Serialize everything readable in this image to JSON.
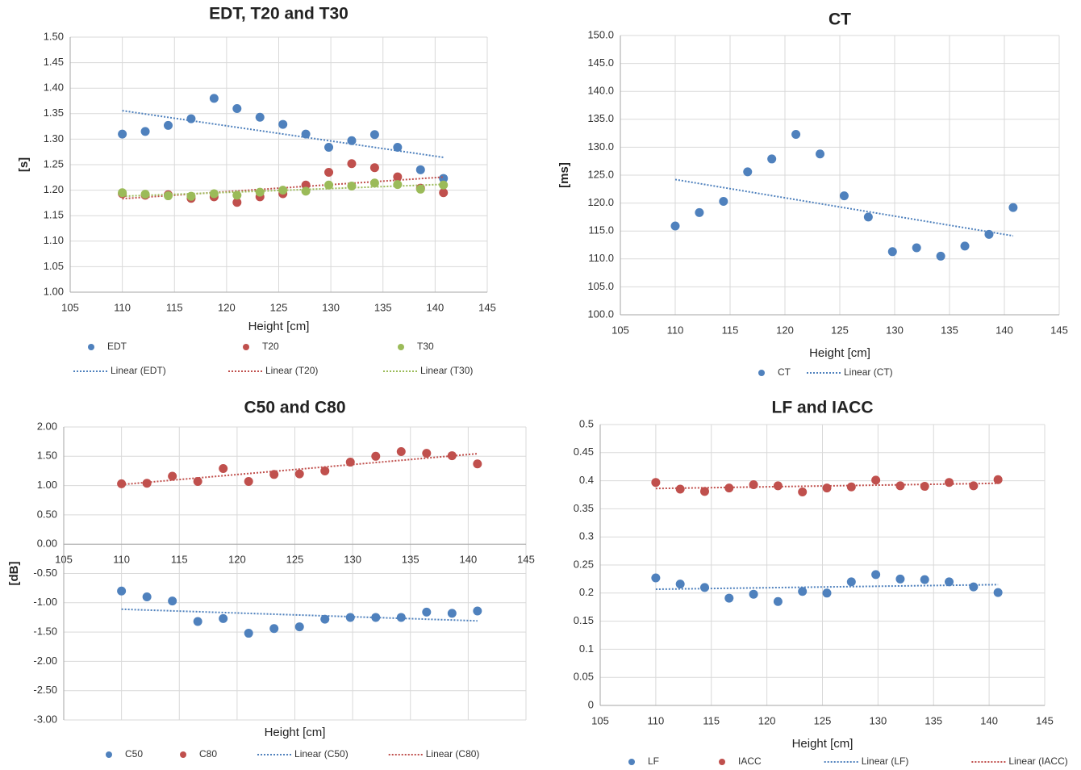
{
  "chart_data": [
    {
      "type": "scatter",
      "title": "EDT, T20  and T30",
      "xlabel": "Height [cm]",
      "ylabel": "[s]",
      "x": [
        110,
        112.2,
        114.4,
        116.6,
        118.8,
        121,
        123.2,
        125.4,
        127.6,
        129.8,
        132,
        134.2,
        136.4,
        138.6,
        140.8
      ],
      "series": [
        {
          "name": "EDT",
          "color": "#4f81bd",
          "trendline": "Linear (EDT)",
          "values": [
            1.31,
            1.315,
            1.327,
            1.34,
            1.38,
            1.36,
            1.343,
            1.329,
            1.31,
            1.284,
            1.297,
            1.309,
            1.284,
            1.24,
            1.223
          ]
        },
        {
          "name": "T20",
          "color": "#c0504d",
          "trendline": "Linear (T20)",
          "values": [
            1.193,
            1.19,
            1.191,
            1.184,
            1.187,
            1.176,
            1.187,
            1.193,
            1.21,
            1.235,
            1.252,
            1.244,
            1.226,
            1.204,
            1.195
          ]
        },
        {
          "name": "T30",
          "color": "#9bbb59",
          "trendline": "Linear (T30)",
          "values": [
            1.195,
            1.192,
            1.189,
            1.188,
            1.193,
            1.19,
            1.196,
            1.2,
            1.198,
            1.21,
            1.208,
            1.214,
            1.211,
            1.202,
            1.21
          ]
        }
      ],
      "xlim": [
        105,
        145
      ],
      "xticks": [
        105,
        110,
        115,
        120,
        125,
        130,
        135,
        140,
        145
      ],
      "ylim": [
        1.0,
        1.5
      ],
      "yticks": [
        {
          "value": 1.0,
          "label": "1.00"
        },
        {
          "value": 1.05,
          "label": "1.05"
        },
        {
          "value": 1.1,
          "label": "1.10"
        },
        {
          "value": 1.15,
          "label": "1.15"
        },
        {
          "value": 1.2,
          "label": "1.20"
        },
        {
          "value": 1.25,
          "label": "1.25"
        },
        {
          "value": 1.3,
          "label": "1.30"
        },
        {
          "value": 1.35,
          "label": "1.35"
        },
        {
          "value": 1.4,
          "label": "1.40"
        },
        {
          "value": 1.45,
          "label": "1.45"
        },
        {
          "value": 1.5,
          "label": "1.50"
        }
      ],
      "grid": true,
      "legend": "bottom"
    },
    {
      "type": "scatter",
      "title": "CT",
      "xlabel": "Height [cm]",
      "ylabel": "[ms]",
      "x": [
        110,
        112.2,
        114.4,
        116.6,
        118.8,
        121,
        123.2,
        125.4,
        127.6,
        129.8,
        132,
        134.2,
        136.4,
        138.6,
        140.8
      ],
      "series": [
        {
          "name": "CT",
          "color": "#4f81bd",
          "trendline": "Linear (CT)",
          "values": [
            115.9,
            118.3,
            120.3,
            125.6,
            127.9,
            132.3,
            128.8,
            121.3,
            117.5,
            111.3,
            112,
            110.5,
            112.3,
            114.4,
            119.2
          ]
        }
      ],
      "xlim": [
        105,
        145
      ],
      "xticks": [
        105,
        110,
        115,
        120,
        125,
        130,
        135,
        140,
        145
      ],
      "ylim": [
        100,
        150
      ],
      "yticks": [
        {
          "value": 100,
          "label": "100.0"
        },
        {
          "value": 105,
          "label": "105.0"
        },
        {
          "value": 110,
          "label": "110.0"
        },
        {
          "value": 115,
          "label": "115.0"
        },
        {
          "value": 120,
          "label": "120.0"
        },
        {
          "value": 125,
          "label": "125.0"
        },
        {
          "value": 130,
          "label": "130.0"
        },
        {
          "value": 135,
          "label": "135.0"
        },
        {
          "value": 140,
          "label": "140.0"
        },
        {
          "value": 145,
          "label": "145.0"
        },
        {
          "value": 150,
          "label": "150.0"
        }
      ],
      "grid": true,
      "legend": "bottom"
    },
    {
      "type": "scatter",
      "title": "C50 and C80",
      "xlabel": "Height [cm]",
      "ylabel": "[dB]",
      "x": [
        110,
        112.2,
        114.4,
        116.6,
        118.8,
        121,
        123.2,
        125.4,
        127.6,
        129.8,
        132,
        134.2,
        136.4,
        138.6,
        140.8
      ],
      "series": [
        {
          "name": "C50",
          "color": "#4f81bd",
          "trendline": "Linear (C50)",
          "values": [
            -0.8,
            -0.9,
            -0.97,
            -1.32,
            -1.27,
            -1.52,
            -1.44,
            -1.41,
            -1.28,
            -1.25,
            -1.25,
            -1.25,
            -1.16,
            -1.18,
            -1.14
          ]
        },
        {
          "name": "C80",
          "color": "#c0504d",
          "trendline": "Linear (C80)",
          "values": [
            1.03,
            1.04,
            1.16,
            1.07,
            1.29,
            1.07,
            1.19,
            1.2,
            1.25,
            1.4,
            1.5,
            1.58,
            1.55,
            1.51,
            1.37
          ]
        }
      ],
      "xlim": [
        105,
        145
      ],
      "xticks": [
        105,
        110,
        115,
        120,
        125,
        130,
        135,
        140,
        145
      ],
      "ylim": [
        -3.0,
        2.0
      ],
      "yticks": [
        {
          "value": -3.0,
          "label": "-3.00"
        },
        {
          "value": -2.5,
          "label": "-2.50"
        },
        {
          "value": -2.0,
          "label": "-2.00"
        },
        {
          "value": -1.5,
          "label": "-1.50"
        },
        {
          "value": -1.0,
          "label": "-1.00"
        },
        {
          "value": -0.5,
          "label": "-0.50"
        },
        {
          "value": 0,
          "label": "0.00"
        },
        {
          "value": 0.5,
          "label": "0.50"
        },
        {
          "value": 1.0,
          "label": "1.00"
        },
        {
          "value": 1.5,
          "label": "1.50"
        },
        {
          "value": 2.0,
          "label": "2.00"
        }
      ],
      "grid": true,
      "legend": "bottom"
    },
    {
      "type": "scatter",
      "title": "LF  and IACC",
      "xlabel": "Height [cm]",
      "x": [
        110,
        112.2,
        114.4,
        116.6,
        118.8,
        121,
        123.2,
        125.4,
        127.6,
        129.8,
        132,
        134.2,
        136.4,
        138.6,
        140.8
      ],
      "series": [
        {
          "name": "LF",
          "color": "#4f81bd",
          "trendline": "Linear (LF)",
          "values": [
            0.227,
            0.216,
            0.21,
            0.191,
            0.198,
            0.185,
            0.203,
            0.2,
            0.22,
            0.233,
            0.225,
            0.224,
            0.22,
            0.211,
            0.201
          ]
        },
        {
          "name": "IACC",
          "color": "#c0504d",
          "trendline": "Linear (IACC)",
          "values": [
            0.397,
            0.385,
            0.381,
            0.387,
            0.393,
            0.391,
            0.38,
            0.387,
            0.389,
            0.401,
            0.391,
            0.39,
            0.397,
            0.391,
            0.402
          ]
        }
      ],
      "xlim": [
        105,
        145
      ],
      "xticks": [
        105,
        110,
        115,
        120,
        125,
        130,
        135,
        140,
        145
      ],
      "ylim": [
        0,
        0.5
      ],
      "yticks": [
        0,
        0.05,
        0.1,
        0.15,
        0.2,
        0.25,
        0.3,
        0.35,
        0.4,
        0.45,
        0.5
      ],
      "grid": true,
      "legend": "bottom"
    }
  ]
}
